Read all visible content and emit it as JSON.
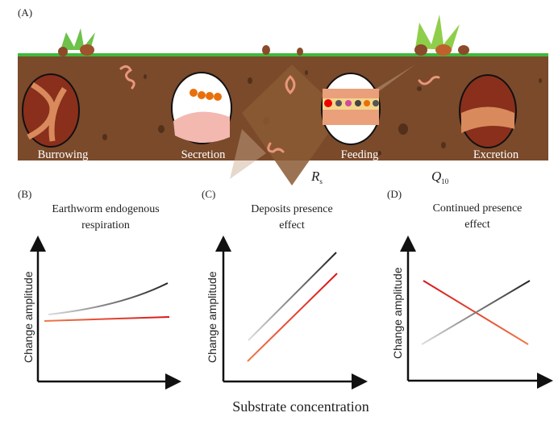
{
  "panels": {
    "a": {
      "label": "(A)",
      "processes": [
        "Burrowing",
        "Secretion",
        "Feeding",
        "Excretion"
      ]
    },
    "b": {
      "label": "(B)",
      "title_line1": "Earthworm endogenous",
      "title_line2": "respiration",
      "ylabel": "Change amplitude"
    },
    "c": {
      "label": "(C)",
      "title_line1": "Deposits presence",
      "title_line2": "effect",
      "ylabel": "Change amplitude"
    },
    "d": {
      "label": "(D)",
      "title_line1": "Continued presence",
      "title_line2": "effect",
      "ylabel": "Change amplitude"
    }
  },
  "legend": {
    "rs_main": "R",
    "rs_sub": "s",
    "q_main": "Q",
    "q_sub": "10",
    "rs_color": "#333333",
    "q10_color": "#e0201e"
  },
  "xlabel": "Substrate concentration",
  "colors": {
    "soil": "#7a4a2b",
    "grass": "#3fb93a",
    "worm": "#e9967a"
  }
}
